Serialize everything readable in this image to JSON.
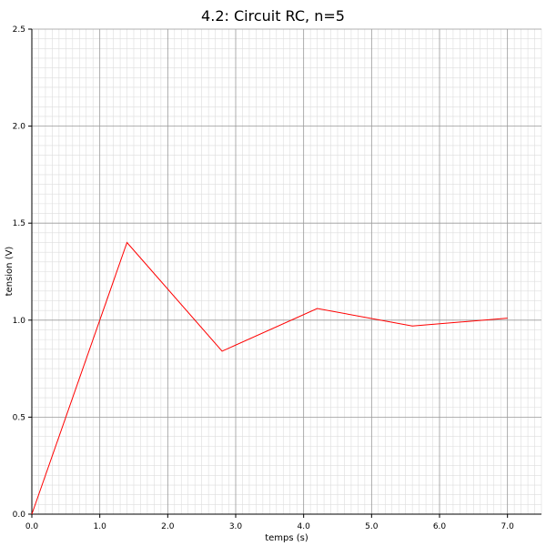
{
  "chart_data": {
    "type": "line",
    "title": "4.2: Circuit RC, n=5",
    "xlabel": "temps (s)",
    "ylabel": "tension (V)",
    "xlim": [
      0,
      7.5
    ],
    "ylim": [
      0,
      2.5
    ],
    "x_ticks": [
      "0.0",
      "1.0",
      "2.0",
      "3.0",
      "4.0",
      "5.0",
      "6.0",
      "7.0"
    ],
    "y_ticks": [
      "0.0",
      "0.5",
      "1.0",
      "1.5",
      "2.0",
      "2.5"
    ],
    "grid": "major and minor",
    "series": [
      {
        "color": "#ff0000",
        "x": [
          0.0,
          1.4,
          2.8,
          4.2,
          5.6,
          7.0
        ],
        "y": [
          0.0,
          1.4,
          0.84,
          1.06,
          0.97,
          1.01
        ]
      }
    ]
  },
  "colors": {
    "line": "#ff0000",
    "major_grid": "#999999",
    "minor_grid": "#dddddd",
    "axis": "#000000"
  }
}
